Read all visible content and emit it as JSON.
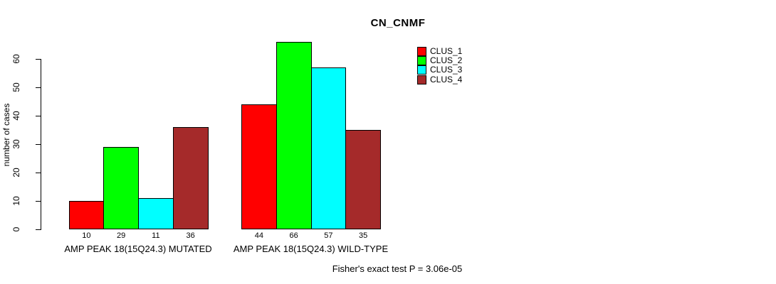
{
  "title": "CN_CNMF",
  "ylabel": "number of cases",
  "footnote": "Fisher's exact test P = 3.06e-05",
  "chart_data": {
    "type": "bar",
    "title": "CN_CNMF",
    "ylabel": "number of cases",
    "xlabel": "",
    "categories": [
      "AMP PEAK 18(15Q24.3) MUTATED",
      "AMP PEAK 18(15Q24.3) WILD-TYPE"
    ],
    "series": [
      {
        "name": "CLUS_1",
        "color": "#ff0000",
        "values": [
          10,
          44
        ]
      },
      {
        "name": "CLUS_2",
        "color": "#00ff00",
        "values": [
          29,
          66
        ]
      },
      {
        "name": "CLUS_3",
        "color": "#00ffff",
        "values": [
          11,
          57
        ]
      },
      {
        "name": "CLUS_4",
        "color": "#a52a2a",
        "values": [
          36,
          35
        ]
      }
    ],
    "yticks": [
      0,
      10,
      20,
      30,
      40,
      50,
      60
    ],
    "ylim": [
      0,
      66
    ],
    "grid": false,
    "bar_borders": "#000000",
    "bar_value_labels_shown": true,
    "legend_position": "top-right",
    "legend_entries": [
      "CLUS_1",
      "CLUS_2",
      "CLUS_3",
      "CLUS_4"
    ],
    "annotation": "Fisher's exact test P = 3.06e-05"
  }
}
